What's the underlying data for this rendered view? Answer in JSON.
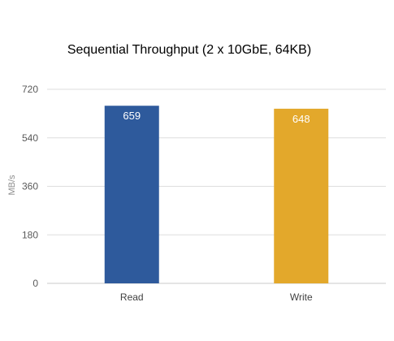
{
  "chart_data": {
    "type": "bar",
    "title": "Sequential Throughput (2 x 10GbE, 64KB)",
    "xlabel": "",
    "ylabel": "MB/s",
    "categories": [
      "Read",
      "Write"
    ],
    "values": [
      659,
      648
    ],
    "data_labels": [
      "659",
      "648"
    ],
    "colors": [
      "#2e5a9c",
      "#e3a82b"
    ],
    "ylim": [
      0,
      720
    ],
    "yticks": [
      0,
      180,
      360,
      540,
      720
    ],
    "ytick_labels": [
      "0",
      "180",
      "360",
      "540",
      "720"
    ],
    "grid": true,
    "legend": "none"
  }
}
